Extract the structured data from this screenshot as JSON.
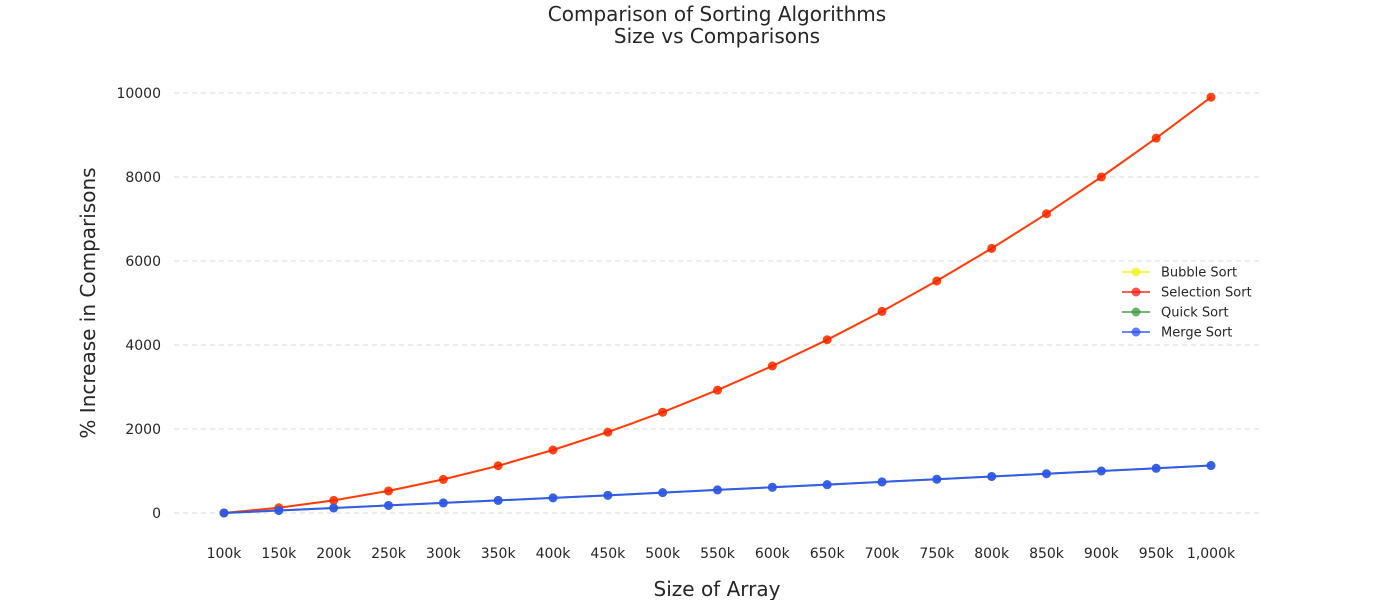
{
  "chart_data": {
    "type": "line",
    "title": "Comparison of Sorting Algorithms",
    "subtitle": "Size vs Comparisons",
    "xlabel": "Size of Array",
    "ylabel": "% Increase in Comparisons",
    "categories": [
      "100k",
      "150k",
      "200k",
      "250k",
      "300k",
      "350k",
      "400k",
      "450k",
      "500k",
      "550k",
      "600k",
      "650k",
      "700k",
      "750k",
      "800k",
      "850k",
      "900k",
      "950k",
      "1,000k"
    ],
    "yticks": [
      0,
      2000,
      4000,
      6000,
      8000,
      10000
    ],
    "ylim": [
      -600,
      10600
    ],
    "grid": "horizontal-dashed",
    "legend_position": "right",
    "series": [
      {
        "name": "Bubble Sort",
        "color": "#f2f20d",
        "values": [
          0,
          125,
          300,
          525,
          800,
          1125,
          1500,
          1925,
          2400,
          2925,
          3500,
          4125,
          4800,
          5525,
          6300,
          7125,
          8000,
          8925,
          9900
        ]
      },
      {
        "name": "Selection Sort",
        "color": "#ff1a0d",
        "values": [
          0,
          125,
          300,
          525,
          800,
          1125,
          1500,
          1925,
          2400,
          2925,
          3500,
          4125,
          4800,
          5525,
          6300,
          7125,
          8000,
          8925,
          9900
        ]
      },
      {
        "name": "Quick Sort",
        "color": "#3a9a3a",
        "values": [
          0,
          60,
          120,
          180,
          240,
          300,
          360,
          420,
          485,
          550,
          612,
          675,
          740,
          805,
          870,
          935,
          1000,
          1065,
          1130
        ]
      },
      {
        "name": "Merge Sort",
        "color": "#2f4fff",
        "values": [
          0,
          60,
          120,
          180,
          240,
          300,
          360,
          420,
          485,
          550,
          612,
          675,
          740,
          805,
          870,
          935,
          1000,
          1065,
          1130
        ]
      }
    ]
  }
}
